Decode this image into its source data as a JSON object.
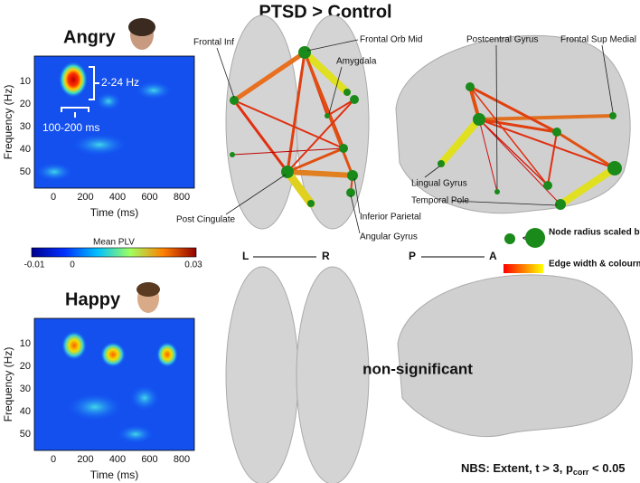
{
  "title": "PTSD > Control",
  "panels": [
    {
      "label": "Angry",
      "annotations": [
        "2-24 Hz",
        "100-200 ms"
      ]
    },
    {
      "label": "Happy"
    }
  ],
  "heatmap_axes": {
    "y_label": "Frequency (Hz)",
    "x_label": "Time (ms)",
    "yticks": [
      "10",
      "20",
      "30",
      "40",
      "50"
    ],
    "xticks": [
      "0",
      "200",
      "400",
      "600",
      "800"
    ]
  },
  "colorbar": {
    "title": "Mean PLV",
    "ticks": [
      "-0.01",
      "0",
      "0.03"
    ]
  },
  "axial_labels": [
    "Frontal Inf",
    "Frontal Orb Mid",
    "Amygdala",
    "Post Cingulate",
    "Inferior Parietal",
    "Angular Gyrus"
  ],
  "sagittal_labels": [
    "Postcentral Gyrus",
    "Frontal Sup Medial",
    "Lingual Gyrus",
    "Temporal Pole"
  ],
  "orientation": [
    "L",
    "R",
    "P",
    "A"
  ],
  "legend": [
    "Node radius scaled by strength",
    "Edge width & colourmap scaled by weight"
  ],
  "non_significant": "non-significant",
  "stats": {
    "before": "NBS: Extent, t > 3, p",
    "sub": "corr",
    "after": " < 0.05"
  }
}
